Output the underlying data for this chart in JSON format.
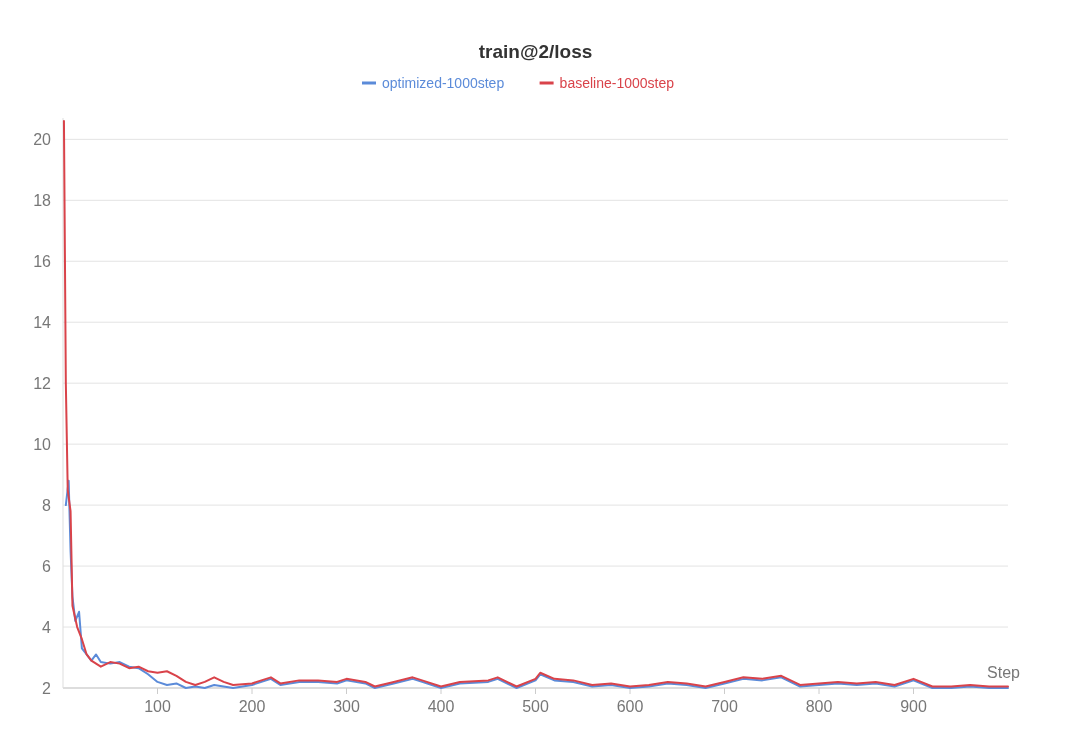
{
  "chart_data": {
    "type": "line",
    "title": "train@2/loss",
    "xlabel": "Step",
    "legend": "top",
    "grid": "y",
    "line_style": "solid",
    "marker": "none",
    "xlim": [
      0,
      1000
    ],
    "xticks": [
      100,
      200,
      300,
      400,
      500,
      600,
      700,
      800,
      900
    ],
    "ylim": [
      2,
      20.7
    ],
    "yticks": [
      2,
      4,
      6,
      8,
      10,
      12,
      14,
      16,
      18,
      20
    ],
    "series": [
      {
        "name": "optimized-1000step",
        "color": "#5b8bd9",
        "x": [
          3,
          6,
          8,
          10,
          13,
          17,
          20,
          25,
          30,
          35,
          40,
          50,
          60,
          70,
          80,
          90,
          100,
          110,
          120,
          130,
          140,
          150,
          160,
          170,
          180,
          200,
          220,
          230,
          250,
          270,
          290,
          300,
          320,
          330,
          350,
          370,
          380,
          400,
          420,
          450,
          460,
          480,
          500,
          505,
          520,
          540,
          560,
          580,
          600,
          620,
          640,
          660,
          680,
          700,
          720,
          740,
          760,
          780,
          800,
          820,
          840,
          860,
          880,
          900,
          920,
          940,
          960,
          980,
          1000
        ],
        "values": [
          8.0,
          8.8,
          6.5,
          5.0,
          4.2,
          4.5,
          3.3,
          3.1,
          2.9,
          3.1,
          2.85,
          2.8,
          2.85,
          2.7,
          2.65,
          2.45,
          2.2,
          2.1,
          2.15,
          2.0,
          2.05,
          2.0,
          2.1,
          2.05,
          2.0,
          2.1,
          2.3,
          2.1,
          2.2,
          2.2,
          2.15,
          2.25,
          2.15,
          2.0,
          2.15,
          2.3,
          2.2,
          2.0,
          2.15,
          2.2,
          2.3,
          2.0,
          2.25,
          2.45,
          2.25,
          2.2,
          2.05,
          2.1,
          2.0,
          2.05,
          2.15,
          2.1,
          2.0,
          2.15,
          2.3,
          2.25,
          2.35,
          2.05,
          2.1,
          2.15,
          2.1,
          2.15,
          2.05,
          2.25,
          2.0,
          2.0,
          2.05,
          2.0,
          2.0
        ]
      },
      {
        "name": "baseline-1000step",
        "color": "#d9434a",
        "x": [
          1,
          3,
          5,
          8,
          10,
          15,
          20,
          25,
          30,
          40,
          50,
          60,
          70,
          80,
          90,
          100,
          110,
          120,
          130,
          140,
          150,
          160,
          170,
          180,
          200,
          220,
          230,
          250,
          270,
          290,
          300,
          320,
          330,
          350,
          370,
          380,
          400,
          420,
          450,
          460,
          480,
          500,
          505,
          520,
          540,
          560,
          580,
          600,
          620,
          640,
          660,
          680,
          700,
          720,
          740,
          760,
          780,
          800,
          820,
          840,
          860,
          880,
          900,
          920,
          940,
          960,
          980,
          1000
        ],
        "values": [
          20.6,
          12.0,
          8.5,
          7.8,
          4.7,
          4.0,
          3.6,
          3.1,
          2.9,
          2.7,
          2.85,
          2.8,
          2.65,
          2.7,
          2.55,
          2.5,
          2.55,
          2.4,
          2.2,
          2.1,
          2.2,
          2.35,
          2.2,
          2.1,
          2.15,
          2.35,
          2.15,
          2.25,
          2.25,
          2.2,
          2.3,
          2.2,
          2.05,
          2.2,
          2.35,
          2.25,
          2.05,
          2.2,
          2.25,
          2.35,
          2.05,
          2.3,
          2.5,
          2.3,
          2.25,
          2.1,
          2.15,
          2.05,
          2.1,
          2.2,
          2.15,
          2.05,
          2.2,
          2.35,
          2.3,
          2.4,
          2.1,
          2.15,
          2.2,
          2.15,
          2.2,
          2.1,
          2.3,
          2.05,
          2.05,
          2.1,
          2.05,
          2.05
        ]
      }
    ]
  }
}
